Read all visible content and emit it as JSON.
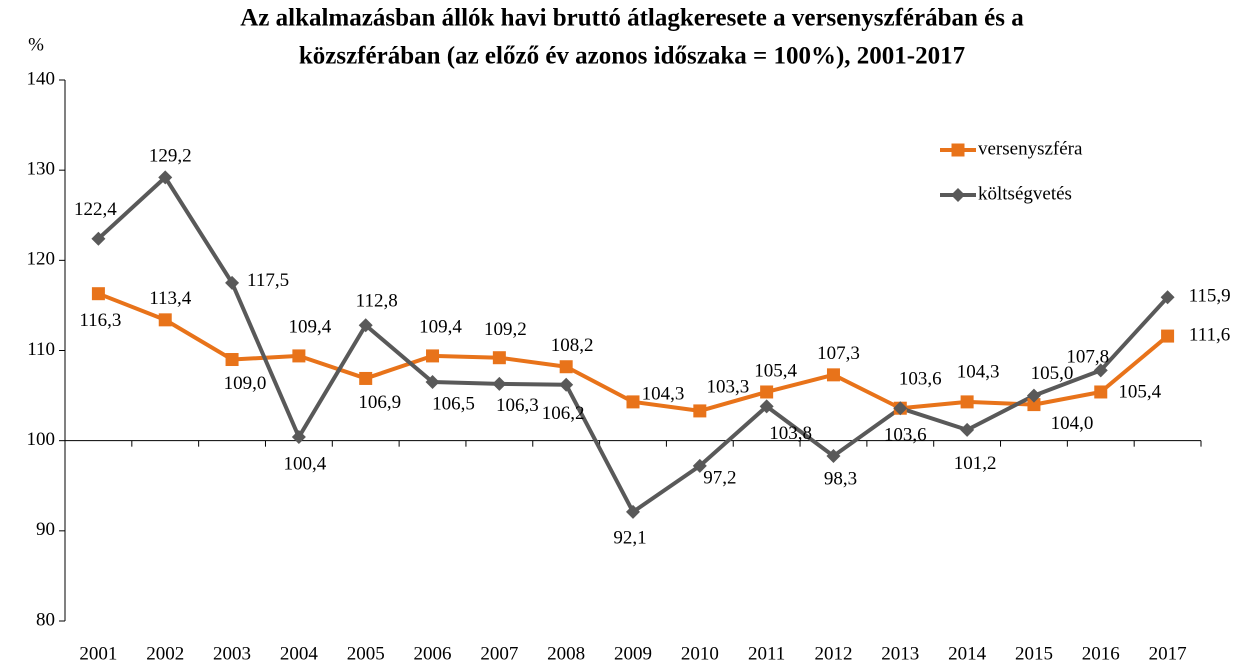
{
  "chart_data": {
    "type": "line",
    "title": [
      "Az alkalmazásban állók havi bruttó átlagkeresete a versenyszférában és a",
      "közszférában (az előző év azonos időszaka = 100%), 2001-2017"
    ],
    "y_label": "%",
    "categories": [
      "2001",
      "2002",
      "2003",
      "2004",
      "2005",
      "2006",
      "2007",
      "2008",
      "2009",
      "2010",
      "2011",
      "2012",
      "2013",
      "2014",
      "2015",
      "2016",
      "2017"
    ],
    "series": [
      {
        "name": "versenyszféra",
        "color": "#e8731a",
        "marker": "square",
        "values": [
          116.3,
          113.4,
          109.0,
          109.4,
          106.9,
          109.4,
          109.2,
          108.2,
          104.3,
          103.3,
          105.4,
          107.3,
          103.6,
          104.3,
          104.0,
          105.4,
          111.6
        ],
        "value_labels": [
          "116,3",
          "113,4",
          "109,0",
          "109,4",
          "106,9",
          "109,4",
          "109,2",
          "108,2",
          "104,3",
          "103,3",
          "105,4",
          "107,3",
          "103,6",
          "104,3",
          "104,0",
          "105,4",
          "111,6"
        ]
      },
      {
        "name": "költségvetés",
        "color": "#595959",
        "marker": "diamond",
        "values": [
          122.4,
          129.2,
          117.5,
          100.4,
          112.8,
          106.5,
          106.3,
          106.2,
          92.1,
          97.2,
          103.8,
          98.3,
          103.6,
          101.2,
          105.0,
          107.8,
          115.9
        ],
        "value_labels": [
          "122,4",
          "129,2",
          "117,5",
          "100,4",
          "112,8",
          "106,5",
          "106,3",
          "106,2",
          "92,1",
          "97,2",
          "103,8",
          "98,3",
          "103,6",
          "101,2",
          "105,0",
          "107,8",
          "115,9"
        ]
      }
    ],
    "ylim": [
      80,
      140
    ],
    "yticks": [
      80,
      90,
      100,
      110,
      120,
      130,
      140
    ],
    "x_axis_at": 100,
    "grid": false,
    "legend": "upper right"
  }
}
